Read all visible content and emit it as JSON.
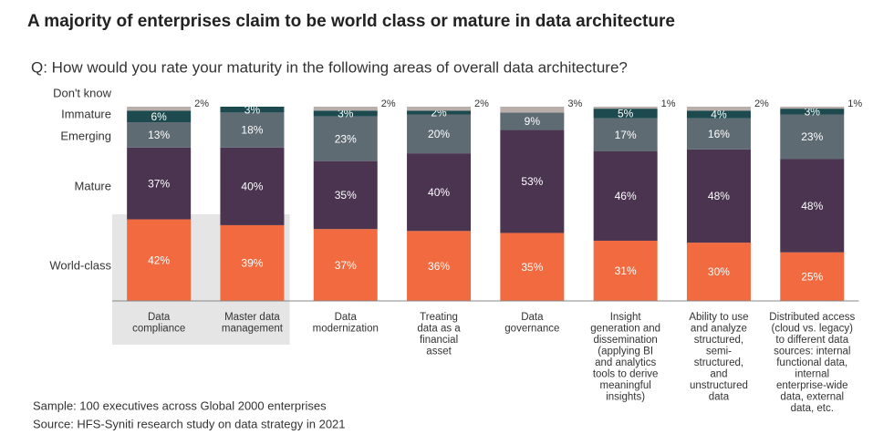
{
  "chart_data": {
    "type": "stacked-bar",
    "title": "A majority of enterprises claim to be world class or mature in data architecture",
    "subtitle": "Q:  How would you rate your maturity in the following areas of overall data architecture?",
    "categories": [
      "Data\ncompliance",
      "Master data\nmanagement",
      "Data\nmodernization",
      "Treating\ndata as a\nfinancial\nasset",
      "Data\ngovernance",
      "Insight\ngeneration and\ndissemination\n(applying BI\nand analytics\ntools to derive\nmeaningful\ninsights)",
      "Ability to use\nand analyze\nstructured,\nsemi-\nstructured,\nand\nunstructured\ndata",
      "Distributed access\n(cloud vs. legacy)\nto different data\nsources: internal\nfunctional data,\ninternal\nenterprise-wide\ndata, external\ndata, etc."
    ],
    "series": [
      {
        "name": "World-class",
        "color": "#f26a3f",
        "values": [
          42,
          39,
          37,
          36,
          35,
          31,
          30,
          25
        ],
        "value_labels": [
          "42%",
          "39%",
          "37%",
          "36%",
          "35%",
          "31%",
          "30%",
          "25%"
        ]
      },
      {
        "name": "Mature",
        "color": "#4a3450",
        "values": [
          37,
          40,
          35,
          40,
          53,
          46,
          48,
          48
        ],
        "value_labels": [
          "37%",
          "40%",
          "35%",
          "40%",
          "53%",
          "46%",
          "48%",
          "48%"
        ]
      },
      {
        "name": "Emerging",
        "color": "#5f6b73",
        "values": [
          13,
          18,
          23,
          20,
          9,
          17,
          16,
          23
        ],
        "value_labels": [
          "13%",
          "18%",
          "23%",
          "20%",
          "9%",
          "17%",
          "16%",
          "23%"
        ]
      },
      {
        "name": "Immature",
        "color": "#1d4a4f",
        "values": [
          6,
          3,
          3,
          2,
          0,
          5,
          4,
          3
        ],
        "value_labels": [
          "6%",
          "3%",
          "3%",
          "2%",
          null,
          "5%",
          "4%",
          "3%"
        ]
      },
      {
        "name": "Don't know",
        "color": "#b9aeaa",
        "values": [
          2,
          0,
          2,
          2,
          3,
          1,
          2,
          1
        ],
        "value_labels": [
          "2%",
          null,
          "2%",
          "2%",
          "3%",
          "1%",
          "2%",
          "1%"
        ]
      }
    ],
    "ylim": [
      0,
      100
    ],
    "highlight": [
      0,
      1
    ],
    "notes": [
      "Sample: 100 executives across Global 2000 enterprises",
      "Source: HFS-Syniti research study on data strategy in 2021"
    ]
  }
}
